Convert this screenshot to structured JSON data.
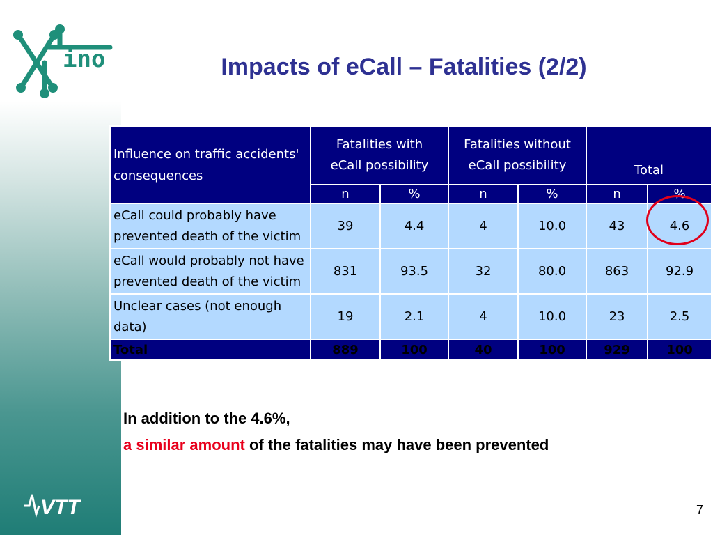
{
  "slide": {
    "title": "Impacts of eCall – Fatalities (2/2)",
    "logo_text": "ino",
    "footer_logo_text": "VTT",
    "page_number": "7"
  },
  "table": {
    "header_label": "Influence on traffic accidents' consequences",
    "groups": [
      {
        "label_line1": "Fatalities with",
        "label_line2": "eCall possibility"
      },
      {
        "label_line1": "Fatalities without",
        "label_line2": "eCall possibility"
      },
      {
        "label_line1": "",
        "label_line2": "Total"
      }
    ],
    "subheaders": [
      "n",
      "%",
      "n",
      "%",
      "n",
      "%"
    ],
    "rows": [
      {
        "label_line1": "eCall could probably have",
        "label_line2": "prevented death of the victim",
        "values": [
          "39",
          "4.4",
          "4",
          "10.0",
          "43",
          "4.6"
        ]
      },
      {
        "label_line1": "eCall would probably not have",
        "label_line2": "prevented death of the victim",
        "values": [
          "831",
          "93.5",
          "32",
          "80.0",
          "863",
          "92.9"
        ]
      },
      {
        "label_line1": "Unclear cases (not enough",
        "label_line2": "data)",
        "values": [
          "19",
          "2.1",
          "4",
          "10.0",
          "23",
          "2.5"
        ]
      }
    ],
    "total": {
      "label": "Total",
      "values": [
        "889",
        "100",
        "40",
        "100",
        "929",
        "100"
      ]
    }
  },
  "note": {
    "line1": "In addition to the 4.6%,",
    "line2_highlight": "a similar amount",
    "line2_rest": " of the fatalities may have been prevented"
  },
  "colors": {
    "title": "#2e3192",
    "table_header": "#000080",
    "table_body": "#b3d9ff",
    "highlight": "#e8001c",
    "brand_green": "#1f8f7a"
  }
}
